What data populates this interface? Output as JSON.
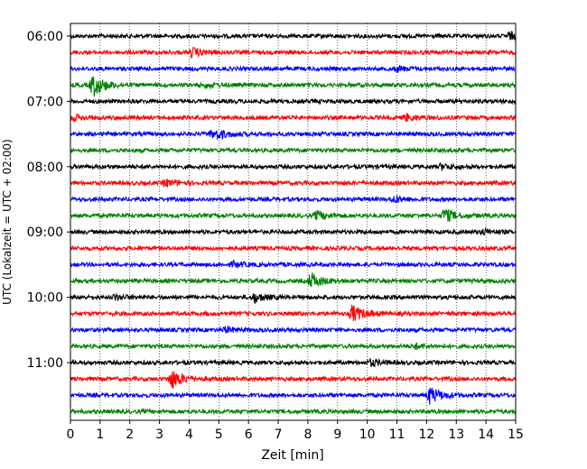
{
  "chart_data": {
    "type": "line",
    "title": "",
    "xlabel": "Zeit  [min]",
    "ylabel": "UTC (Lokalzeit = UTC + 02:00)",
    "xlim": [
      0,
      15
    ],
    "x_ticks": [
      "0",
      "1",
      "2",
      "3",
      "4",
      "5",
      "6",
      "7",
      "8",
      "9",
      "10",
      "11",
      "12",
      "13",
      "14",
      "15"
    ],
    "y_ticks": [
      "06:00",
      "07:00",
      "08:00",
      "09:00",
      "10:00",
      "11:00"
    ],
    "grid": "vertical dotted",
    "trace_colors": [
      "#000000",
      "#ff0000",
      "#0000ff",
      "#008000"
    ],
    "trace_start_times": [
      "06:00",
      "06:15",
      "06:30",
      "06:45",
      "07:00",
      "07:15",
      "07:30",
      "07:45",
      "08:00",
      "08:15",
      "08:30",
      "08:45",
      "09:00",
      "09:15",
      "09:30",
      "09:45",
      "10:00",
      "10:15",
      "10:30",
      "10:45",
      "11:00",
      "11:15",
      "11:30",
      "11:45"
    ],
    "events": [
      {
        "trace": 0,
        "t": 14.8,
        "amp": 0.4
      },
      {
        "trace": 1,
        "t": 4.1,
        "amp": 0.5
      },
      {
        "trace": 2,
        "t": 11.0,
        "amp": 0.3
      },
      {
        "trace": 3,
        "t": 0.75,
        "amp": 1.4
      },
      {
        "trace": 3,
        "t": 4.6,
        "amp": 0.25
      },
      {
        "trace": 5,
        "t": 11.3,
        "amp": 0.4
      },
      {
        "trace": 5,
        "t": 0.1,
        "amp": 0.3
      },
      {
        "trace": 6,
        "t": 4.75,
        "amp": 0.4
      },
      {
        "trace": 6,
        "t": 5.0,
        "amp": 0.3
      },
      {
        "trace": 8,
        "t": 12.5,
        "amp": 0.3
      },
      {
        "trace": 9,
        "t": 3.2,
        "amp": 0.4
      },
      {
        "trace": 10,
        "t": 10.9,
        "amp": 0.35
      },
      {
        "trace": 11,
        "t": 8.3,
        "amp": 0.5
      },
      {
        "trace": 11,
        "t": 12.6,
        "amp": 0.8
      },
      {
        "trace": 12,
        "t": 13.9,
        "amp": 0.3
      },
      {
        "trace": 14,
        "t": 5.5,
        "amp": 0.3
      },
      {
        "trace": 15,
        "t": 8.1,
        "amp": 0.9
      },
      {
        "trace": 16,
        "t": 6.2,
        "amp": 0.55
      },
      {
        "trace": 16,
        "t": 1.5,
        "amp": 0.3
      },
      {
        "trace": 17,
        "t": 9.5,
        "amp": 1.0
      },
      {
        "trace": 18,
        "t": 5.2,
        "amp": 0.3
      },
      {
        "trace": 19,
        "t": 11.6,
        "amp": 0.3
      },
      {
        "trace": 20,
        "t": 10.1,
        "amp": 0.35
      },
      {
        "trace": 21,
        "t": 3.4,
        "amp": 1.2
      },
      {
        "trace": 22,
        "t": 12.1,
        "amp": 1.0
      }
    ]
  }
}
